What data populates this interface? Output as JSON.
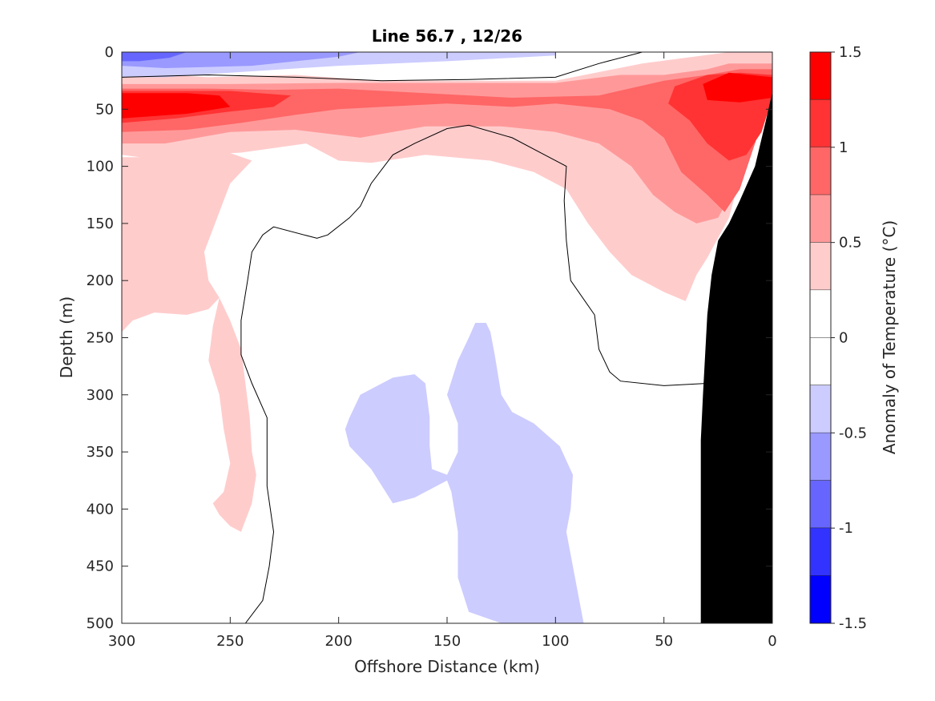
{
  "chart_data": {
    "type": "heatmap",
    "title": "Line 56.7 , 12/26",
    "xlabel": "Offshore Distance (km)",
    "ylabel": "Depth (m)",
    "xlim": [
      300,
      0
    ],
    "ylim": [
      0,
      500
    ],
    "x_reversed": true,
    "y_reversed": true,
    "xticks": [
      300,
      250,
      200,
      150,
      100,
      50,
      0
    ],
    "yticks": [
      0,
      50,
      100,
      150,
      200,
      250,
      300,
      350,
      400,
      450,
      500
    ],
    "colorbar": {
      "label": "Anomaly of Temperature (°C)",
      "range": [
        -1.5,
        1.5
      ],
      "ticks": [
        1.5,
        1,
        0.5,
        0,
        -0.5,
        -1,
        -1.5
      ],
      "tick_labels": [
        "1.5",
        "1",
        "0.5",
        "0",
        "-0.5",
        "-1",
        "-1.5"
      ],
      "levels": [
        {
          "from": 1.25,
          "to": 1.5,
          "color": "#ff0000"
        },
        {
          "from": 1.0,
          "to": 1.25,
          "color": "#ff3333"
        },
        {
          "from": 0.75,
          "to": 1.0,
          "color": "#ff6666"
        },
        {
          "from": 0.5,
          "to": 0.75,
          "color": "#ff9999"
        },
        {
          "from": 0.25,
          "to": 0.5,
          "color": "#ffcccc"
        },
        {
          "from": 0.0,
          "to": 0.25,
          "color": "#ffffff"
        },
        {
          "from": -0.25,
          "to": 0.0,
          "color": "#ffffff"
        },
        {
          "from": -0.5,
          "to": -0.25,
          "color": "#ccccff"
        },
        {
          "from": -0.75,
          "to": -0.5,
          "color": "#9999ff"
        },
        {
          "from": -1.0,
          "to": -0.75,
          "color": "#6666ff"
        },
        {
          "from": -1.25,
          "to": -1.0,
          "color": "#3333ff"
        },
        {
          "from": -1.5,
          "to": -1.25,
          "color": "#0000ff"
        }
      ]
    },
    "regions": [
      {
        "name": "warm-0.25-0.5",
        "color": "#ffcccc",
        "points": [
          [
            300,
            18
          ],
          [
            260,
            22
          ],
          [
            220,
            20
          ],
          [
            180,
            25
          ],
          [
            140,
            25
          ],
          [
            100,
            25
          ],
          [
            60,
            10
          ],
          [
            40,
            5
          ],
          [
            20,
            0
          ],
          [
            0,
            0
          ],
          [
            0,
            35
          ],
          [
            8,
            60
          ],
          [
            20,
            145
          ],
          [
            30,
            180
          ],
          [
            35,
            195
          ],
          [
            40,
            218
          ],
          [
            50,
            210
          ],
          [
            65,
            195
          ],
          [
            75,
            175
          ],
          [
            85,
            150
          ],
          [
            95,
            120
          ],
          [
            110,
            105
          ],
          [
            130,
            95
          ],
          [
            160,
            90
          ],
          [
            185,
            97
          ],
          [
            200,
            95
          ],
          [
            215,
            80
          ],
          [
            245,
            88
          ],
          [
            265,
            90
          ],
          [
            280,
            95
          ],
          [
            300,
            90
          ]
        ]
      },
      {
        "name": "warm-0.25-0.5-tongue",
        "color": "#ffcccc",
        "points": [
          [
            300,
            245
          ],
          [
            295,
            235
          ],
          [
            285,
            228
          ],
          [
            270,
            230
          ],
          [
            260,
            225
          ],
          [
            255,
            215
          ],
          [
            260,
            200
          ],
          [
            262,
            175
          ],
          [
            255,
            140
          ],
          [
            250,
            115
          ],
          [
            240,
            95
          ],
          [
            255,
            85
          ],
          [
            275,
            92
          ],
          [
            300,
            92
          ]
        ]
      },
      {
        "name": "warm-0.25-0.5-lower",
        "color": "#ffcccc",
        "points": [
          [
            260,
            200
          ],
          [
            255,
            215
          ],
          [
            258,
            240
          ],
          [
            260,
            270
          ],
          [
            255,
            300
          ],
          [
            253,
            330
          ],
          [
            250,
            360
          ],
          [
            253,
            385
          ],
          [
            258,
            395
          ],
          [
            255,
            405
          ],
          [
            250,
            415
          ],
          [
            245,
            420
          ],
          [
            240,
            395
          ],
          [
            238,
            370
          ],
          [
            240,
            350
          ],
          [
            241,
            320
          ],
          [
            243,
            290
          ],
          [
            245,
            260
          ],
          [
            250,
            235
          ],
          [
            255,
            215
          ]
        ]
      },
      {
        "name": "warm-0.5-0.75",
        "color": "#ff9999",
        "points": [
          [
            300,
            28
          ],
          [
            250,
            28
          ],
          [
            200,
            27
          ],
          [
            150,
            27
          ],
          [
            100,
            27
          ],
          [
            70,
            20
          ],
          [
            50,
            20
          ],
          [
            30,
            15
          ],
          [
            20,
            10
          ],
          [
            0,
            10
          ],
          [
            0,
            35
          ],
          [
            10,
            80
          ],
          [
            15,
            110
          ],
          [
            25,
            145
          ],
          [
            35,
            150
          ],
          [
            45,
            140
          ],
          [
            55,
            125
          ],
          [
            65,
            100
          ],
          [
            80,
            80
          ],
          [
            100,
            70
          ],
          [
            125,
            65
          ],
          [
            160,
            65
          ],
          [
            190,
            75
          ],
          [
            220,
            68
          ],
          [
            250,
            70
          ],
          [
            280,
            80
          ],
          [
            300,
            80
          ]
        ]
      },
      {
        "name": "warm-0.75-1.0",
        "color": "#ff6666",
        "points": [
          [
            300,
            32
          ],
          [
            260,
            32
          ],
          [
            230,
            33
          ],
          [
            200,
            32
          ],
          [
            160,
            36
          ],
          [
            120,
            40
          ],
          [
            80,
            38
          ],
          [
            50,
            25
          ],
          [
            30,
            20
          ],
          [
            15,
            15
          ],
          [
            0,
            15
          ],
          [
            0,
            35
          ],
          [
            8,
            80
          ],
          [
            15,
            120
          ],
          [
            22,
            140
          ],
          [
            30,
            125
          ],
          [
            42,
            105
          ],
          [
            50,
            75
          ],
          [
            60,
            60
          ],
          [
            75,
            50
          ],
          [
            100,
            45
          ],
          [
            120,
            48
          ],
          [
            150,
            45
          ],
          [
            180,
            48
          ],
          [
            200,
            50
          ],
          [
            220,
            55
          ],
          [
            245,
            62
          ],
          [
            270,
            68
          ],
          [
            300,
            70
          ]
        ]
      },
      {
        "name": "warm-1.0-1.25",
        "color": "#ff3333",
        "points": [
          [
            300,
            34
          ],
          [
            250,
            34
          ],
          [
            222,
            38
          ],
          [
            230,
            48
          ],
          [
            250,
            52
          ],
          [
            275,
            58
          ],
          [
            300,
            62
          ]
        ]
      },
      {
        "name": "warm-1.0-1.25-coast",
        "color": "#ff3333",
        "points": [
          [
            0,
            20
          ],
          [
            15,
            18
          ],
          [
            30,
            20
          ],
          [
            45,
            30
          ],
          [
            48,
            45
          ],
          [
            38,
            60
          ],
          [
            30,
            80
          ],
          [
            20,
            95
          ],
          [
            12,
            90
          ],
          [
            5,
            70
          ],
          [
            0,
            40
          ]
        ]
      },
      {
        "name": "warm-1.25-1.5",
        "color": "#ff0000",
        "points": [
          [
            300,
            36
          ],
          [
            270,
            36
          ],
          [
            255,
            38
          ],
          [
            250,
            48
          ],
          [
            270,
            54
          ],
          [
            300,
            58
          ]
        ]
      },
      {
        "name": "warm-1.25-1.5-coast",
        "color": "#ff0000",
        "points": [
          [
            0,
            22
          ],
          [
            20,
            18
          ],
          [
            32,
            28
          ],
          [
            30,
            42
          ],
          [
            15,
            44
          ],
          [
            0,
            40
          ]
        ]
      },
      {
        "name": "cold-surface-band",
        "color": "#ccccff",
        "points": [
          [
            300,
            0
          ],
          [
            100,
            0
          ],
          [
            100,
            3
          ],
          [
            150,
            8
          ],
          [
            200,
            12
          ],
          [
            250,
            18
          ],
          [
            280,
            22
          ],
          [
            300,
            22
          ]
        ]
      },
      {
        "name": "cold-surface-mid",
        "color": "#9999ff",
        "points": [
          [
            300,
            0
          ],
          [
            190,
            0
          ],
          [
            200,
            4
          ],
          [
            240,
            12
          ],
          [
            280,
            14
          ],
          [
            300,
            12
          ]
        ]
      },
      {
        "name": "cold-surface-strong",
        "color": "#6666ff",
        "points": [
          [
            300,
            0
          ],
          [
            270,
            0
          ],
          [
            278,
            5
          ],
          [
            292,
            8
          ],
          [
            300,
            8
          ]
        ]
      },
      {
        "name": "cold-subsurface",
        "color": "#ccccff",
        "points": [
          [
            195,
            320
          ],
          [
            190,
            300
          ],
          [
            175,
            285
          ],
          [
            165,
            282
          ],
          [
            160,
            290
          ],
          [
            158,
            320
          ],
          [
            158,
            345
          ],
          [
            157,
            365
          ],
          [
            150,
            370
          ],
          [
            145,
            350
          ],
          [
            145,
            325
          ],
          [
            150,
            300
          ],
          [
            145,
            270
          ],
          [
            140,
            250
          ],
          [
            137,
            237
          ],
          [
            132,
            237
          ],
          [
            130,
            245
          ],
          [
            128,
            265
          ],
          [
            125,
            300
          ],
          [
            120,
            315
          ],
          [
            110,
            325
          ],
          [
            98,
            345
          ],
          [
            92,
            370
          ],
          [
            93,
            400
          ],
          [
            95,
            420
          ],
          [
            92,
            450
          ],
          [
            90,
            470
          ],
          [
            87,
            500
          ],
          [
            125,
            500
          ],
          [
            140,
            490
          ],
          [
            145,
            460
          ],
          [
            145,
            420
          ],
          [
            148,
            385
          ],
          [
            150,
            375
          ],
          [
            145,
            370
          ],
          [
            155,
            380
          ],
          [
            165,
            390
          ],
          [
            175,
            395
          ],
          [
            185,
            365
          ],
          [
            195,
            345
          ],
          [
            197,
            330
          ]
        ]
      }
    ],
    "contour_zero": [
      [
        [
          300,
          22
        ],
        [
          260,
          20
        ],
        [
          220,
          22
        ],
        [
          180,
          25
        ],
        [
          140,
          24
        ],
        [
          100,
          22
        ],
        [
          80,
          10
        ],
        [
          60,
          0
        ]
      ],
      [
        [
          243,
          500
        ],
        [
          235,
          480
        ],
        [
          232,
          450
        ],
        [
          230,
          420
        ],
        [
          233,
          380
        ],
        [
          233,
          340
        ],
        [
          233,
          320
        ],
        [
          240,
          290
        ],
        [
          245,
          265
        ],
        [
          245,
          235
        ],
        [
          242,
          200
        ],
        [
          240,
          175
        ],
        [
          235,
          160
        ],
        [
          230,
          153
        ],
        [
          210,
          163
        ],
        [
          205,
          160
        ],
        [
          195,
          145
        ],
        [
          190,
          135
        ],
        [
          185,
          115
        ],
        [
          175,
          90
        ],
        [
          165,
          80
        ],
        [
          150,
          67
        ],
        [
          140,
          64
        ],
        [
          120,
          75
        ],
        [
          105,
          90
        ],
        [
          95,
          100
        ],
        [
          96,
          130
        ],
        [
          95,
          165
        ],
        [
          93,
          200
        ],
        [
          82,
          230
        ],
        [
          80,
          260
        ],
        [
          75,
          280
        ],
        [
          70,
          288
        ],
        [
          50,
          292
        ],
        [
          30,
          290
        ],
        [
          27,
          285
        ]
      ]
    ],
    "land": {
      "color": "#000000",
      "points": [
        [
          0,
          35
        ],
        [
          3,
          60
        ],
        [
          8,
          100
        ],
        [
          15,
          130
        ],
        [
          20,
          150
        ],
        [
          25,
          165
        ],
        [
          28,
          195
        ],
        [
          30,
          230
        ],
        [
          32,
          300
        ],
        [
          33,
          340
        ],
        [
          33,
          400
        ],
        [
          33,
          450
        ],
        [
          33,
          500
        ],
        [
          0,
          500
        ]
      ]
    }
  }
}
